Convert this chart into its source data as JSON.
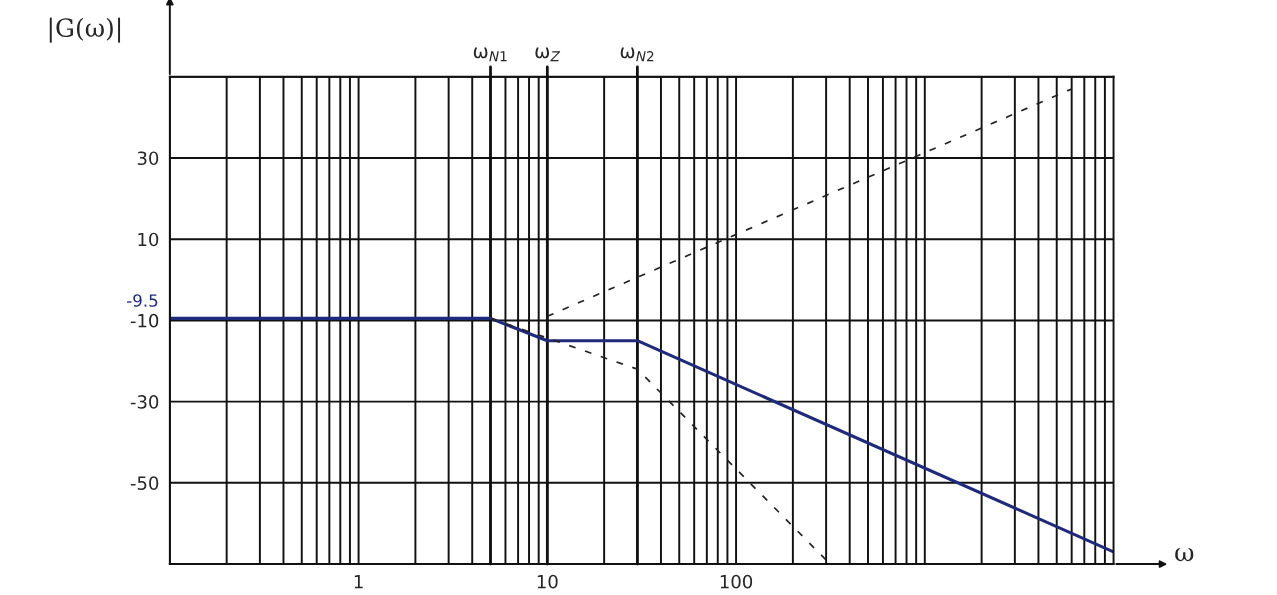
{
  "chart_data": {
    "type": "line",
    "xlabel": "ω",
    "ylabel": "|G(ω)|",
    "log": "x",
    "xlim": [
      0.1,
      10000
    ],
    "xticks": [
      {
        "value": 0.1,
        "label": null
      },
      1,
      10,
      100,
      {
        "value": 1000,
        "label": null
      }
    ],
    "ylim": [
      -70,
      50
    ],
    "yticks": [
      {
        "value": -70,
        "label": null
      },
      -50,
      -30,
      -10,
      10,
      30,
      {
        "value": 50,
        "label": null
      }
    ],
    "grid": true,
    "legend": false,
    "series": [
      {
        "color": "#1f2a7a",
        "line_style": "solid",
        "x": [
          0.1,
          5,
          10,
          30,
          10000
        ],
        "values": [
          -9.5,
          -9.5,
          -15,
          -15,
          -67
        ]
      },
      {
        "color": "#222222",
        "line_style": "dashed",
        "x": [
          10,
          6000
        ],
        "values": [
          -9,
          47
        ]
      },
      {
        "color": "#222222",
        "line_style": "dashed",
        "x": [
          5,
          30,
          300
        ],
        "values": [
          -9.5,
          -22,
          -69
        ]
      }
    ],
    "ref_lines": [
      {
        "axis": "x",
        "value": 5,
        "label": "ω$_{N1}$",
        "color": "#111111"
      },
      {
        "axis": "x",
        "value": 10,
        "label": "ω$_{Z}$",
        "color": "#111111"
      },
      {
        "axis": "x",
        "value": 30,
        "label": "ω$_{N2}$",
        "color": "#111111"
      }
    ],
    "annotations": [
      {
        "text": "-9.5",
        "x": 0.1,
        "y": -9.5
      }
    ]
  }
}
